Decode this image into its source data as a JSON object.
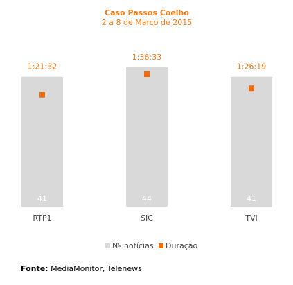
{
  "chart_data": {
    "type": "bar",
    "title": "Caso Passos Coelho",
    "subtitle": "2 a 8 de Março de 2015",
    "categories": [
      "RTP1",
      "SIC",
      "TVI"
    ],
    "series": [
      {
        "name": "Nº notícias",
        "type": "bar",
        "color": "#d9d9d9",
        "values": [
          41,
          44,
          41
        ]
      },
      {
        "name": "Duração",
        "type": "scatter",
        "color": "#f06a0a",
        "values": [
          4892,
          5793,
          5179
        ],
        "value_labels": [
          "1:21:32",
          "1:36:33",
          "1:26:19"
        ]
      }
    ],
    "source_label": "Fonte:",
    "source": "MediaMonitor, Telenews"
  }
}
